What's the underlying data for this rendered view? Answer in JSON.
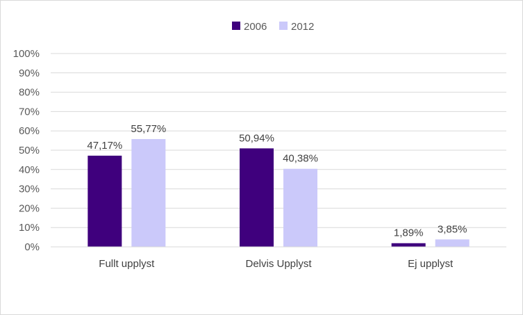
{
  "chart_data": {
    "type": "bar",
    "categories": [
      "Fullt upplyst",
      "Delvis Upplyst",
      "Ej upplyst"
    ],
    "series": [
      {
        "name": "2006",
        "values": [
          47.17,
          50.94,
          1.89
        ],
        "labels": [
          "47,17%",
          "50,94%",
          "1,89%"
        ],
        "color": "#3f007d"
      },
      {
        "name": "2012",
        "values": [
          55.77,
          40.38,
          3.85
        ],
        "labels": [
          "55,77%",
          "40,38%",
          "3,85%"
        ],
        "color": "#cbc9fa"
      }
    ],
    "ylim": [
      0,
      100
    ],
    "yticks": [
      "0%",
      "10%",
      "20%",
      "30%",
      "40%",
      "50%",
      "60%",
      "70%",
      "80%",
      "90%",
      "100%"
    ],
    "legend_position": "top",
    "grid": true
  }
}
